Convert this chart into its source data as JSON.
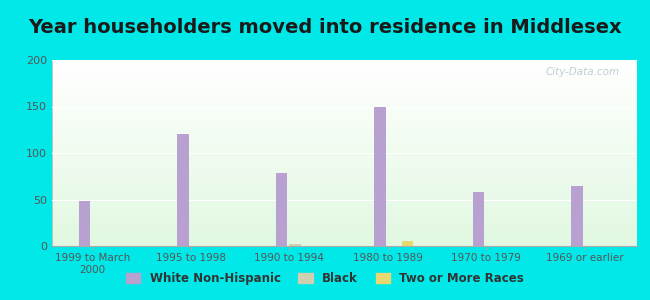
{
  "title": "Year householders moved into residence in Middlesex",
  "categories": [
    "1999 to March\n2000",
    "1995 to 1998",
    "1990 to 1994",
    "1980 to 1989",
    "1970 to 1979",
    "1969 or earlier"
  ],
  "white_non_hispanic": [
    48,
    120,
    78,
    149,
    58,
    65
  ],
  "black": [
    0,
    0,
    2,
    0,
    0,
    0
  ],
  "two_or_more_races": [
    0,
    0,
    0,
    5,
    0,
    0
  ],
  "bar_color_white": "#b8a0d0",
  "bar_color_black": "#d0d0b0",
  "bar_color_two": "#e8d870",
  "background_outer": "#00e8e8",
  "ylim": [
    0,
    200
  ],
  "yticks": [
    0,
    50,
    100,
    150,
    200
  ],
  "title_fontsize": 14,
  "legend_labels": [
    "White Non-Hispanic",
    "Black",
    "Two or More Races"
  ],
  "watermark": "City-Data.com"
}
